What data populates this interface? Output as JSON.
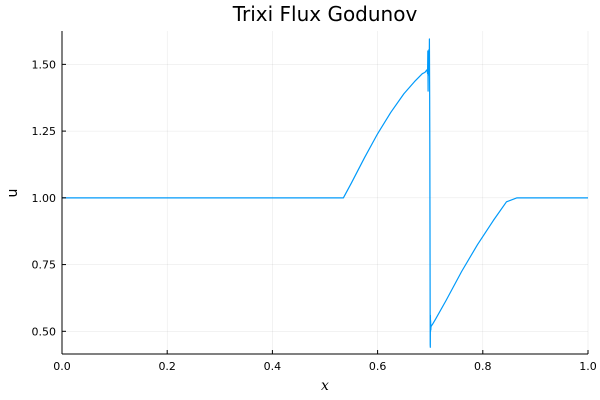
{
  "chart_data": {
    "type": "line",
    "title": "Trixi Flux Godunov",
    "xlabel": "x",
    "ylabel": "u",
    "xlim": [
      0.0,
      1.0
    ],
    "ylim": [
      0.415,
      1.625
    ],
    "grid": true,
    "legend": "none",
    "xticks": [
      0.0,
      0.2,
      0.4,
      0.6,
      0.8,
      1.0
    ],
    "xtick_labels": [
      "0.0",
      "0.2",
      "0.4",
      "0.6",
      "0.8",
      "1.0"
    ],
    "yticks": [
      0.5,
      0.75,
      1.0,
      1.25,
      1.5
    ],
    "ytick_labels": [
      "0.50",
      "0.75",
      "1.00",
      "1.25",
      "1.50"
    ],
    "series": [
      {
        "name": "u",
        "color": "#009AFA",
        "x": [
          0.0,
          0.535,
          0.55,
          0.575,
          0.6,
          0.625,
          0.65,
          0.67,
          0.685,
          0.69,
          0.692,
          0.694,
          0.695,
          0.6955,
          0.696,
          0.6965,
          0.697,
          0.6975,
          0.698,
          0.6985,
          0.699,
          0.6993,
          0.6996,
          0.7,
          0.7002,
          0.7004,
          0.7006,
          0.7008,
          0.701,
          0.7012,
          0.7014,
          0.702,
          0.704,
          0.71,
          0.73,
          0.76,
          0.79,
          0.82,
          0.845,
          0.865,
          0.87,
          1.0
        ],
        "y": [
          1.0,
          1.0,
          1.055,
          1.15,
          1.24,
          1.32,
          1.39,
          1.435,
          1.465,
          1.47,
          1.475,
          1.48,
          1.465,
          1.55,
          1.4,
          1.54,
          1.47,
          1.555,
          1.46,
          1.595,
          1.38,
          1.2,
          0.9,
          0.45,
          0.44,
          0.56,
          0.5,
          0.54,
          0.52,
          0.505,
          0.515,
          0.52,
          0.525,
          0.545,
          0.615,
          0.725,
          0.825,
          0.915,
          0.985,
          1.0,
          1.0,
          1.0
        ]
      }
    ]
  }
}
